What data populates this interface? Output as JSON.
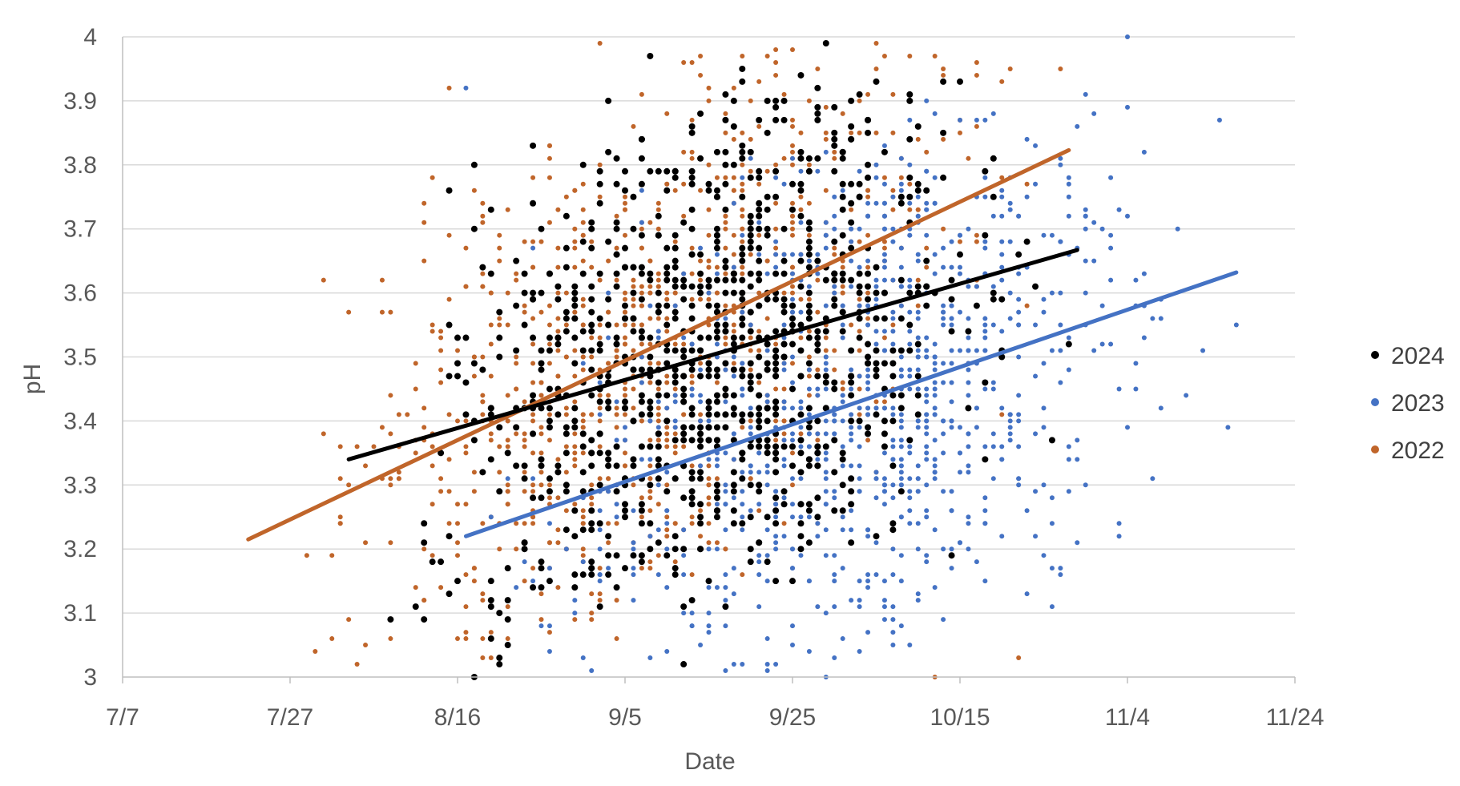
{
  "chart_data": {
    "type": "scatter",
    "xlabel": "Date",
    "ylabel": "pH",
    "xlim": [
      "7/7",
      "11/24"
    ],
    "ylim": [
      3.0,
      4.0
    ],
    "x_ticks": [
      "7/7",
      "7/27",
      "8/16",
      "9/5",
      "9/25",
      "10/15",
      "11/4",
      "11/24"
    ],
    "y_ticks": [
      "3",
      "3.1",
      "3.2",
      "3.3",
      "3.4",
      "3.5",
      "3.6",
      "3.7",
      "3.8",
      "3.9",
      "4"
    ],
    "grid": "horizontal",
    "legend_position": "right",
    "series": [
      {
        "name": "2024",
        "color": "#000000",
        "marker": "dot",
        "x_range": [
          "8/3",
          "10/28"
        ],
        "trendline": {
          "x": [
            "8/3",
            "10/29"
          ],
          "y": [
            3.34,
            3.667
          ]
        },
        "points": [
          [
            "8/12",
            3.21
          ],
          [
            "8/14",
            3.35
          ],
          [
            "8/15",
            3.55
          ],
          [
            "8/18",
            3.8
          ],
          [
            "8/20",
            3.42
          ],
          [
            "8/22",
            3.12
          ],
          [
            "8/24",
            3.63
          ],
          [
            "8/26",
            3.28
          ],
          [
            "8/28",
            3.45
          ],
          [
            "8/30",
            3.22
          ],
          [
            "9/1",
            3.61
          ],
          [
            "9/2",
            3.38
          ],
          [
            "9/3",
            3.9
          ],
          [
            "9/4",
            3.52
          ],
          [
            "9/5",
            3.17
          ],
          [
            "9/6",
            3.7
          ],
          [
            "9/7",
            3.44
          ],
          [
            "9/8",
            3.97
          ],
          [
            "9/9",
            3.31
          ],
          [
            "9/10",
            3.58
          ],
          [
            "9/11",
            3.47
          ],
          [
            "9/12",
            3.02
          ],
          [
            "9/13",
            3.66
          ],
          [
            "9/14",
            3.39
          ],
          [
            "9/15",
            3.53
          ],
          [
            "9/16",
            3.25
          ],
          [
            "9/17",
            3.82
          ],
          [
            "9/18",
            3.48
          ],
          [
            "9/19",
            3.6
          ],
          [
            "9/20",
            3.36
          ],
          [
            "9/21",
            3.72
          ],
          [
            "9/23",
            3.15
          ],
          [
            "9/25",
            3.55
          ],
          [
            "9/27",
            3.42
          ],
          [
            "9/29",
            3.99
          ],
          [
            "10/1",
            3.3
          ],
          [
            "10/3",
            3.63
          ],
          [
            "10/5",
            3.47
          ],
          [
            "10/7",
            3.24
          ],
          [
            "10/9",
            3.78
          ],
          [
            "10/11",
            3.58
          ],
          [
            "10/13",
            3.93
          ],
          [
            "10/16",
            3.42
          ],
          [
            "10/19",
            3.6
          ],
          [
            "10/22",
            3.66
          ],
          [
            "10/26",
            3.37
          ],
          [
            "10/28",
            3.52
          ]
        ]
      },
      {
        "name": "2023",
        "color": "#4472C4",
        "marker": "dot",
        "x_range": [
          "8/17",
          "11/17"
        ],
        "trendline": {
          "x": [
            "8/17",
            "11/17"
          ],
          "y": [
            3.22,
            3.632
          ]
        },
        "points": [
          [
            "8/17",
            3.92
          ],
          [
            "8/31",
            3.18
          ],
          [
            "9/8",
            3.03
          ],
          [
            "9/14",
            3.25
          ],
          [
            "9/20",
            3.55
          ],
          [
            "9/25",
            3.2
          ],
          [
            "9/29",
            3.58
          ],
          [
            "10/2",
            3.37
          ],
          [
            "10/4",
            3.72
          ],
          [
            "10/6",
            3.15
          ],
          [
            "10/8",
            3.48
          ],
          [
            "10/10",
            3.29
          ],
          [
            "10/12",
            3.88
          ],
          [
            "10/14",
            3.55
          ],
          [
            "10/16",
            3.42
          ],
          [
            "10/18",
            3.68
          ],
          [
            "10/20",
            3.22
          ],
          [
            "10/22",
            3.5
          ],
          [
            "10/24",
            3.77
          ],
          [
            "10/26",
            3.6
          ],
          [
            "10/28",
            3.34
          ],
          [
            "10/30",
            3.91
          ],
          [
            "11/1",
            3.58
          ],
          [
            "11/3",
            3.45
          ],
          [
            "11/5",
            3.62
          ],
          [
            "11/7",
            3.31
          ],
          [
            "11/10",
            3.7
          ],
          [
            "11/13",
            3.51
          ],
          [
            "11/15",
            3.87
          ],
          [
            "11/16",
            3.39
          ],
          [
            "11/17",
            3.55
          ]
        ]
      },
      {
        "name": "2022",
        "color": "#C0652A",
        "marker": "dot",
        "x_range": [
          "7/22",
          "10/28"
        ],
        "trendline": {
          "x": [
            "7/22",
            "10/28"
          ],
          "y": [
            3.215,
            3.823
          ]
        },
        "points": [
          [
            "8/1",
            3.06
          ],
          [
            "8/1",
            3.19
          ],
          [
            "8/4",
            3.02
          ],
          [
            "8/8",
            3.3
          ],
          [
            "8/12",
            3.71
          ],
          [
            "8/15",
            3.92
          ],
          [
            "8/17",
            3.27
          ],
          [
            "8/19",
            3.5
          ],
          [
            "8/21",
            3.1
          ],
          [
            "8/23",
            3.63
          ],
          [
            "8/25",
            3.38
          ],
          [
            "8/27",
            3.78
          ],
          [
            "8/29",
            3.2
          ],
          [
            "8/31",
            3.55
          ],
          [
            "9/2",
            3.99
          ],
          [
            "9/3",
            3.31
          ],
          [
            "9/4",
            3.67
          ],
          [
            "9/5",
            3.44
          ],
          [
            "9/6",
            3.86
          ],
          [
            "9/7",
            3.52
          ],
          [
            "9/8",
            3.28
          ],
          [
            "9/9",
            3.73
          ],
          [
            "9/10",
            3.47
          ],
          [
            "9/11",
            3.6
          ],
          [
            "9/12",
            3.36
          ],
          [
            "9/13",
            3.82
          ],
          [
            "9/15",
            3.55
          ],
          [
            "9/17",
            3.41
          ],
          [
            "9/19",
            3.7
          ],
          [
            "9/22",
            3.49
          ],
          [
            "9/25",
            3.87
          ],
          [
            "9/28",
            3.62
          ],
          [
            "10/1",
            3.45
          ],
          [
            "10/4",
            3.76
          ],
          [
            "10/8",
            3.58
          ],
          [
            "10/12",
            3.0
          ],
          [
            "10/17",
            3.68
          ],
          [
            "10/22",
            3.03
          ],
          [
            "10/27",
            3.95
          ]
        ]
      }
    ]
  }
}
